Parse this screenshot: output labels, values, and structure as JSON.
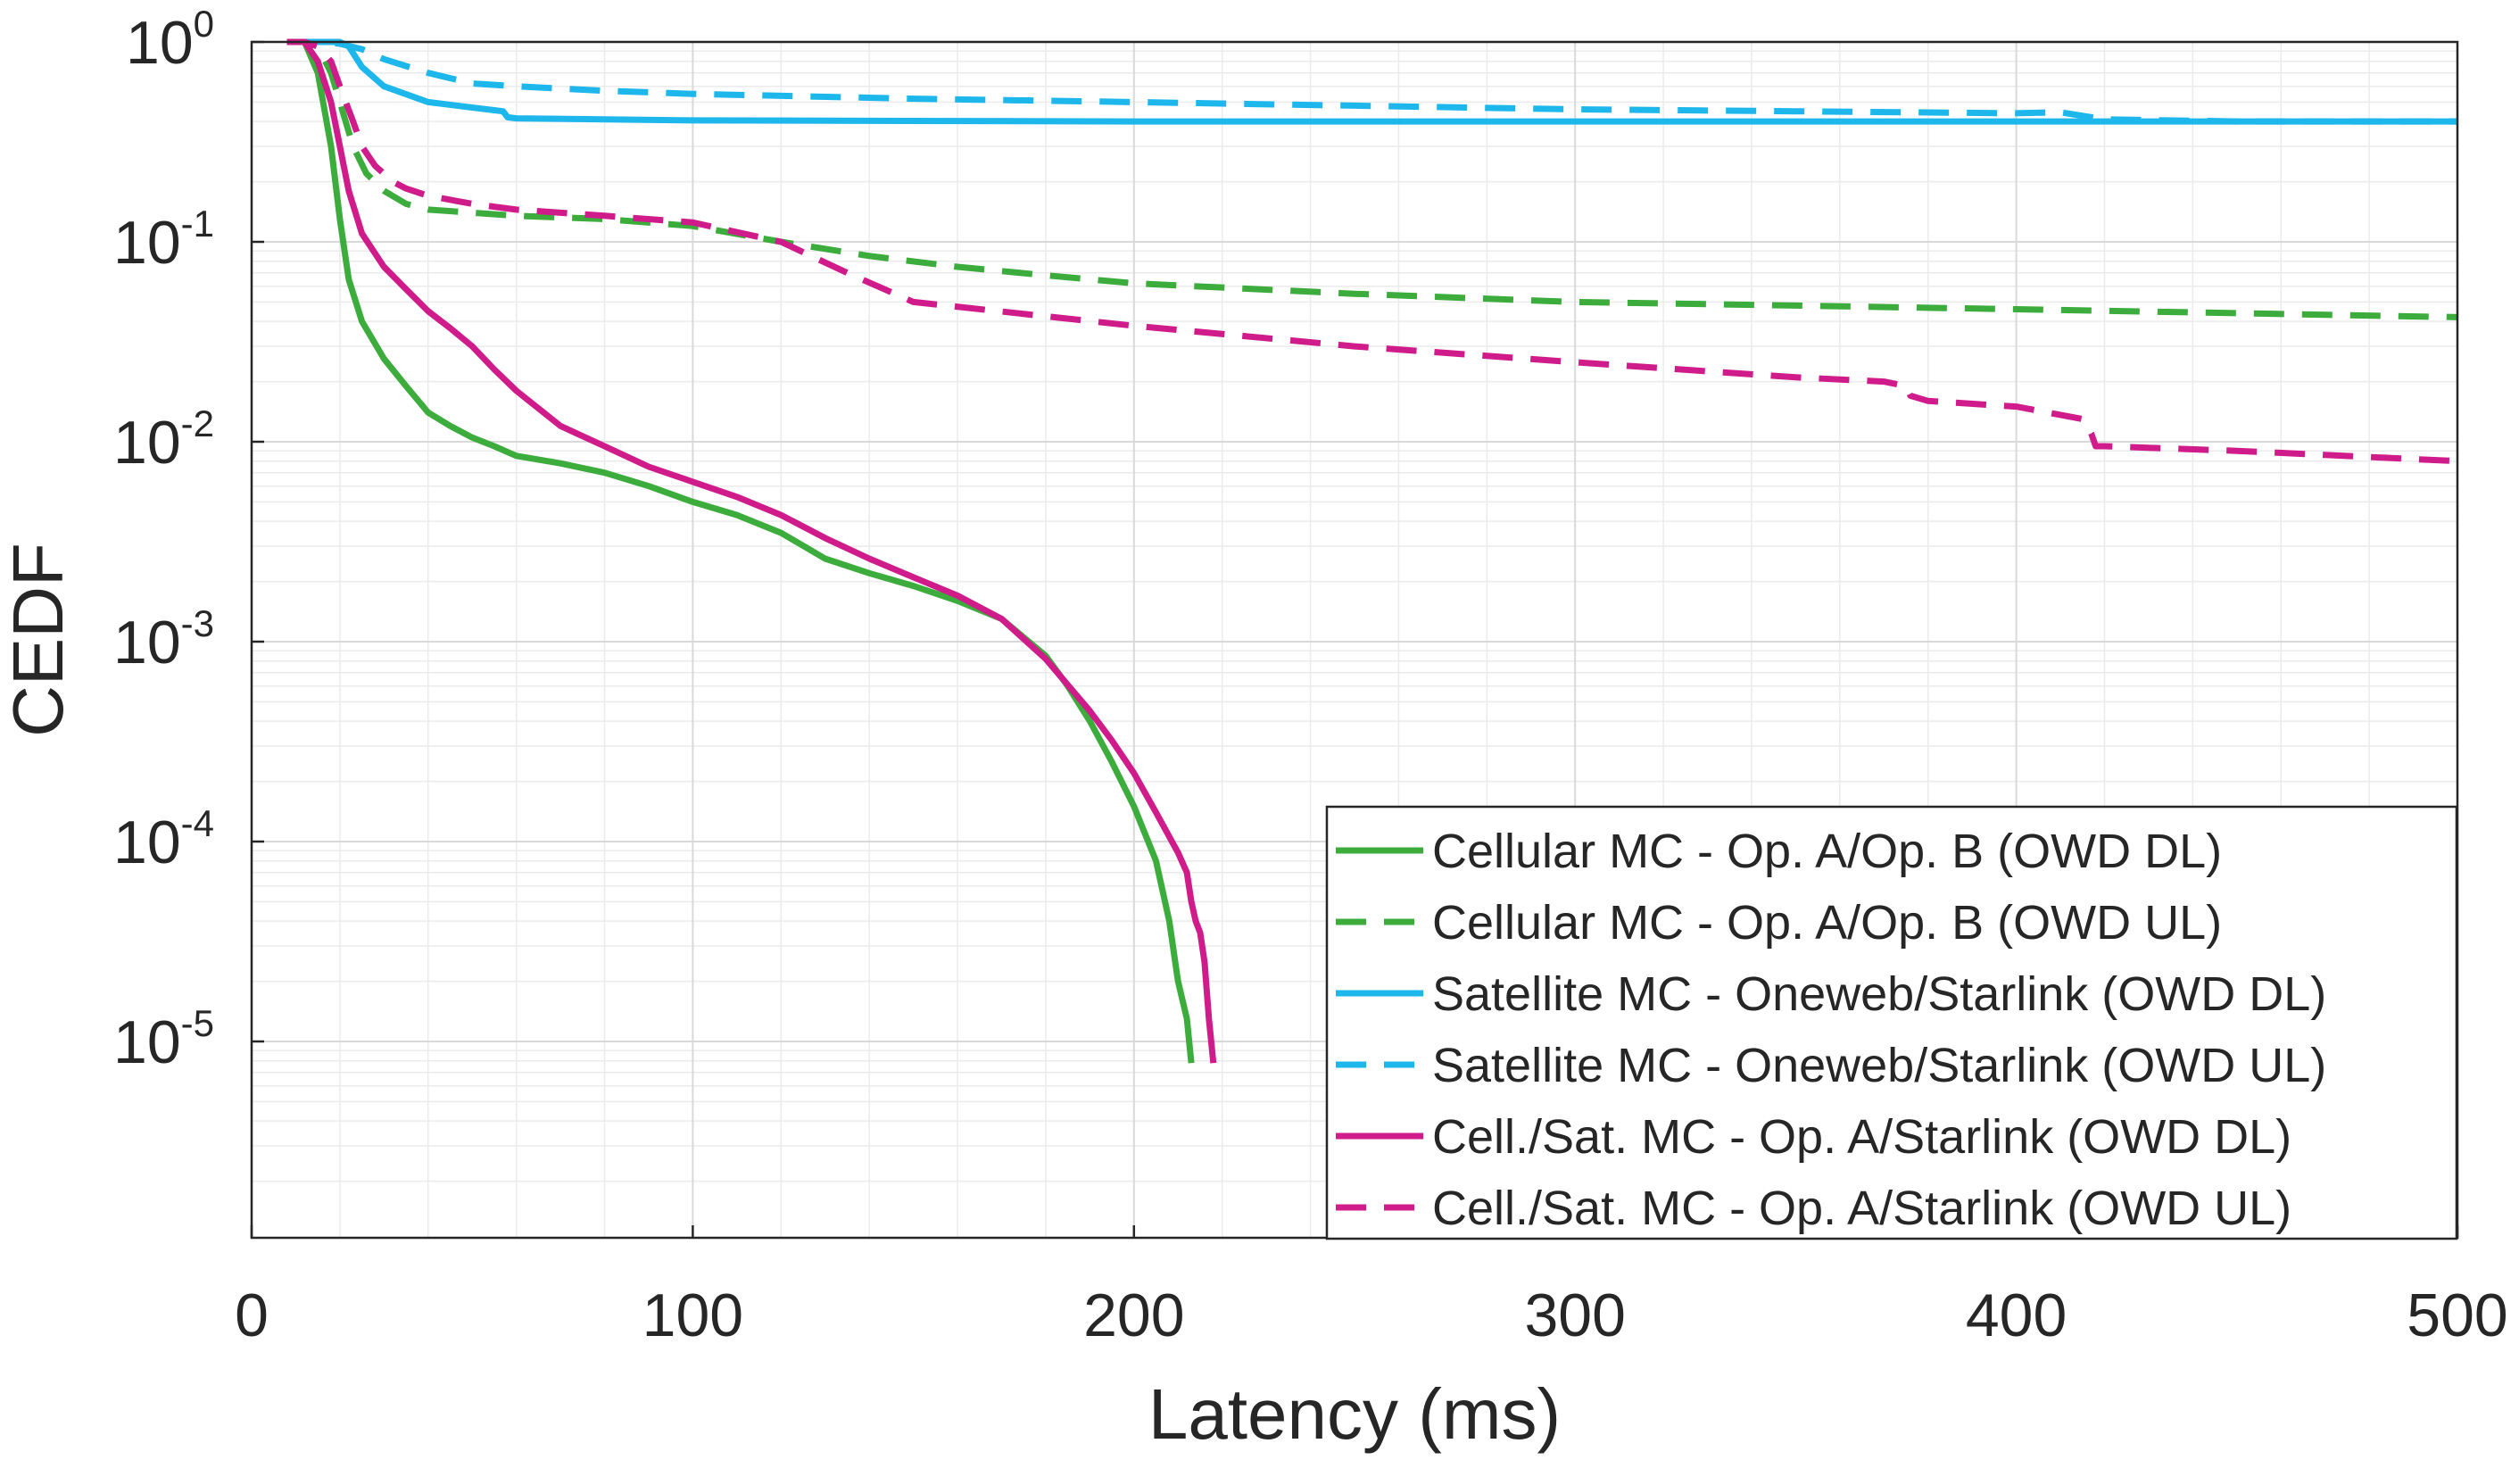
{
  "chart_data": {
    "type": "line",
    "title": "",
    "xlabel": "Latency (ms)",
    "ylabel": "CEDF",
    "xlim": [
      0,
      500
    ],
    "ylim": [
      1e-06,
      1
    ],
    "yscale": "log",
    "grid": true,
    "legend_position": "bottom-right",
    "x_ticks": [
      {
        "value": 0,
        "label": "0"
      },
      {
        "value": 100,
        "label": "100"
      },
      {
        "value": 200,
        "label": "200"
      },
      {
        "value": 300,
        "label": "300"
      },
      {
        "value": 400,
        "label": "400"
      },
      {
        "value": 500,
        "label": "500"
      }
    ],
    "y_ticks": [
      {
        "value": 1,
        "base": "10",
        "exp": "0"
      },
      {
        "value": 0.1,
        "base": "10",
        "exp": "-1"
      },
      {
        "value": 0.01,
        "base": "10",
        "exp": "-2"
      },
      {
        "value": 0.001,
        "base": "10",
        "exp": "-3"
      },
      {
        "value": 0.0001,
        "base": "10",
        "exp": "-4"
      },
      {
        "value": 1e-05,
        "base": "10",
        "exp": "-5"
      }
    ],
    "series": [
      {
        "name": "Cellular MC - Op. A/Op. B (OWD DL)",
        "color": "#3cac3c",
        "dash": "solid",
        "x": [
          8,
          12,
          15,
          18,
          20,
          22,
          25,
          30,
          35,
          40,
          45,
          50,
          55,
          60,
          70,
          80,
          90,
          100,
          110,
          120,
          130,
          140,
          150,
          160,
          170,
          180,
          185,
          190,
          195,
          200,
          205,
          208,
          210,
          212,
          213
        ],
        "y": [
          1,
          1,
          0.7,
          0.3,
          0.13,
          0.065,
          0.04,
          0.026,
          0.019,
          0.014,
          0.012,
          0.0105,
          0.0095,
          0.0085,
          0.0078,
          0.007,
          0.006,
          0.005,
          0.0043,
          0.0035,
          0.0026,
          0.0022,
          0.0019,
          0.0016,
          0.0013,
          0.00085,
          0.0006,
          0.0004,
          0.00025,
          0.00015,
          8e-05,
          4e-05,
          2e-05,
          1.3e-05,
          7.8e-06
        ]
      },
      {
        "name": "Cellular MC - Op. A/Op. B (OWD UL)",
        "color": "#3cac3c",
        "dash": "dashed",
        "x": [
          8,
          12,
          15,
          18,
          20,
          23,
          26,
          30,
          35,
          40,
          50,
          60,
          80,
          100,
          120,
          140,
          160,
          180,
          200,
          250,
          300,
          350,
          400,
          450,
          500
        ],
        "y": [
          1,
          1,
          0.95,
          0.7,
          0.5,
          0.3,
          0.22,
          0.18,
          0.155,
          0.145,
          0.14,
          0.135,
          0.13,
          0.12,
          0.1,
          0.085,
          0.075,
          0.068,
          0.062,
          0.055,
          0.05,
          0.048,
          0.046,
          0.044,
          0.042
        ]
      },
      {
        "name": "Satellite MC - Oneweb/Starlink (OWD DL)",
        "color": "#1db7ec",
        "dash": "solid",
        "x": [
          8,
          15,
          20,
          22,
          25,
          30,
          40,
          50,
          57,
          58,
          60,
          80,
          100,
          200,
          300,
          400,
          500
        ],
        "y": [
          1,
          1,
          1,
          0.95,
          0.75,
          0.6,
          0.5,
          0.47,
          0.45,
          0.42,
          0.415,
          0.41,
          0.405,
          0.4,
          0.4,
          0.4,
          0.4
        ]
      },
      {
        "name": "Satellite MC - Oneweb/Starlink (OWD UL)",
        "color": "#1db7ec",
        "dash": "dashed",
        "x": [
          8,
          15,
          20,
          25,
          30,
          40,
          50,
          60,
          80,
          100,
          150,
          200,
          250,
          300,
          350,
          400,
          410,
          420,
          450,
          500
        ],
        "y": [
          1,
          1,
          0.98,
          0.92,
          0.82,
          0.7,
          0.62,
          0.6,
          0.57,
          0.55,
          0.52,
          0.5,
          0.48,
          0.46,
          0.45,
          0.44,
          0.445,
          0.41,
          0.4,
          0.4
        ]
      },
      {
        "name": "Cell./Sat. MC - Op. A/Starlink (OWD DL)",
        "color": "#d01c8b",
        "dash": "solid",
        "x": [
          8,
          12,
          15,
          18,
          20,
          22,
          25,
          30,
          35,
          40,
          45,
          50,
          55,
          60,
          70,
          80,
          90,
          100,
          110,
          120,
          130,
          140,
          150,
          160,
          170,
          180,
          190,
          195,
          200,
          205,
          210,
          212,
          213,
          214,
          215,
          216,
          217,
          218
        ],
        "y": [
          1,
          1,
          0.8,
          0.5,
          0.3,
          0.18,
          0.11,
          0.075,
          0.058,
          0.045,
          0.037,
          0.03,
          0.023,
          0.018,
          0.012,
          0.0095,
          0.0075,
          0.0063,
          0.0053,
          0.0043,
          0.0033,
          0.0026,
          0.0021,
          0.0017,
          0.0013,
          0.00082,
          0.00045,
          0.00032,
          0.00022,
          0.00014,
          8.8e-05,
          7e-05,
          5e-05,
          4e-05,
          3.5e-05,
          2.5e-05,
          1.3e-05,
          7.8e-06
        ]
      },
      {
        "name": "Cell./Sat. MC - Op. A/Starlink (OWD UL)",
        "color": "#d01c8b",
        "dash": "dashed",
        "x": [
          8,
          12,
          15,
          18,
          20,
          23,
          25,
          28,
          32,
          35,
          40,
          50,
          60,
          80,
          100,
          120,
          135,
          150,
          200,
          250,
          300,
          350,
          370,
          375,
          376,
          380,
          400,
          415,
          417,
          418,
          420,
          450,
          500
        ],
        "y": [
          1,
          1,
          0.95,
          0.8,
          0.6,
          0.4,
          0.3,
          0.24,
          0.2,
          0.185,
          0.17,
          0.155,
          0.145,
          0.135,
          0.125,
          0.1,
          0.07,
          0.05,
          0.038,
          0.03,
          0.025,
          0.021,
          0.02,
          0.019,
          0.017,
          0.016,
          0.015,
          0.013,
          0.011,
          0.0095,
          0.0095,
          0.009,
          0.008
        ]
      }
    ]
  }
}
